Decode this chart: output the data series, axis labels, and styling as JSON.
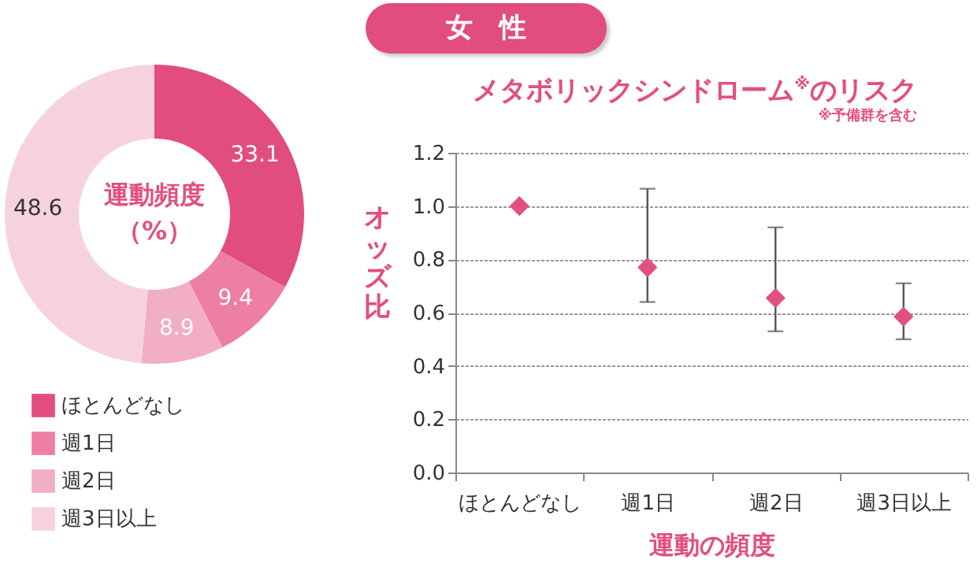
{
  "chart_data": [
    {
      "type": "donut",
      "title": "運動頻度（%）",
      "categories": [
        "ほとんどなし",
        "週1日",
        "週2日",
        "週3日以上"
      ],
      "values": [
        33.1,
        9.4,
        8.9,
        48.6
      ],
      "colors": [
        "#e24d80",
        "#ec7fa3",
        "#f2aec4",
        "#f6d3dc"
      ],
      "data_labels": true,
      "legend": "bottom"
    },
    {
      "type": "scatter",
      "title": "メタボリックシンドローム$^{※}$のリスク",
      "subtitle": "※予備群を含む",
      "annotations": [
        "女　性"
      ],
      "xlabel": "運動の頻度",
      "ylabel": "オッズ比",
      "categories": [
        "ほとんどなし",
        "週1日",
        "週2日",
        "週3日以上"
      ],
      "series": [
        {
          "color": "#e2507f",
          "values": [
            1.0,
            0.77,
            0.655,
            0.585
          ],
          "errors": [
            null,
            [
              0.64,
              1.065
            ],
            [
              0.53,
              0.92
            ],
            [
              0.5,
              0.71
            ]
          ]
        }
      ],
      "ylim": [
        0,
        1.2
      ],
      "yticks": [
        {
          "value": 0,
          "label": "0.0"
        },
        {
          "value": 0.2,
          "label": "0.2"
        },
        {
          "value": 0.4,
          "label": "0.4"
        },
        {
          "value": 0.6,
          "label": "0.6"
        },
        {
          "value": 0.8,
          "label": "0.8"
        },
        {
          "value": 1,
          "label": "1.0"
        },
        {
          "value": 1.2,
          "label": "1.2"
        }
      ],
      "grid": "y",
      "marker": "diamond"
    }
  ]
}
